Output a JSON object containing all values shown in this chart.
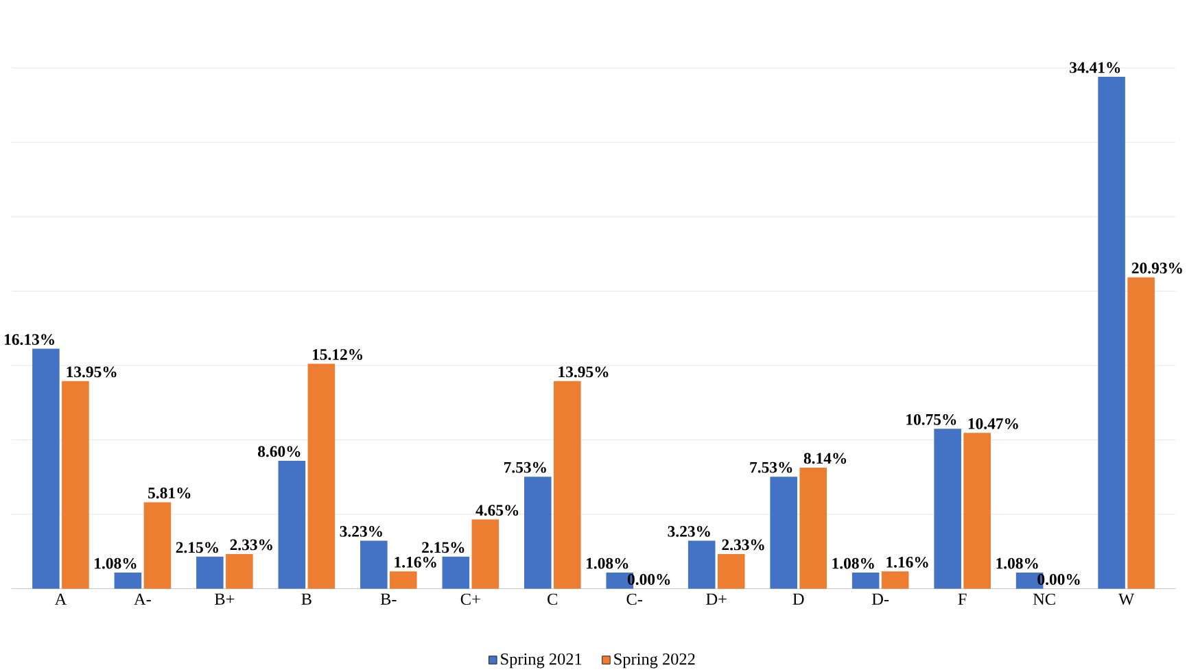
{
  "chart_data": {
    "type": "bar",
    "categories": [
      "A",
      "A-",
      "B+",
      "B",
      "B-",
      "C+",
      "C",
      "C-",
      "D+",
      "D",
      "D-",
      "F",
      "NC",
      "W"
    ],
    "series": [
      {
        "name": "Spring 2021",
        "color": "#4472c4",
        "values": [
          16.13,
          1.08,
          2.15,
          8.6,
          3.23,
          2.15,
          7.53,
          1.08,
          3.23,
          7.53,
          1.08,
          10.75,
          1.08,
          34.41
        ],
        "value_labels": [
          "16.13%",
          "1.08%",
          "2.15%",
          "8.60%",
          "3.23%",
          "2.15%",
          "7.53%",
          "1.08%",
          "3.23%",
          "7.53%",
          "1.08%",
          "10.75%",
          "1.08%",
          "34.41%"
        ]
      },
      {
        "name": "Spring 2022",
        "color": "#ed7d31",
        "values": [
          13.95,
          5.81,
          2.33,
          15.12,
          1.16,
          4.65,
          13.95,
          0.0,
          2.33,
          8.14,
          1.16,
          10.47,
          0.0,
          20.93
        ],
        "value_labels": [
          "13.95%",
          "5.81%",
          "2.33%",
          "15.12%",
          "1.16%",
          "4.65%",
          "13.95%",
          "0.00%",
          "2.33%",
          "8.14%",
          "1.16%",
          "10.47%",
          "0.00%",
          "20.93%"
        ]
      }
    ],
    "tick_labels": "x",
    "grid": "y",
    "legend": "bottom"
  }
}
